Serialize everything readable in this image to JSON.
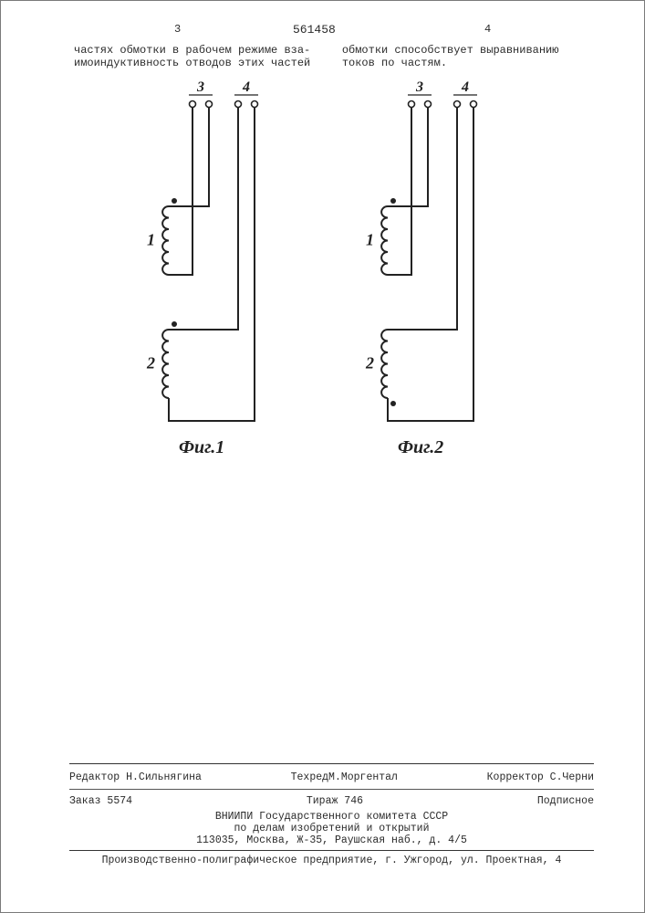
{
  "header": {
    "page_left": "3",
    "patent_number": "561458",
    "page_right": "4",
    "col_left_text": "частях обмотки в рабочем режиме вза­имоиндуктивность отводов этих частей",
    "col_right_text": "обмотки способствует выравниванию токов по частям."
  },
  "figures": {
    "fig1": {
      "caption": "Фиг.1",
      "labels": {
        "left_coil_top": "1",
        "left_coil_bottom": "2",
        "term_left": "3",
        "term_right": "4"
      },
      "stroke": "#222222",
      "stroke_width": 2,
      "coil_turns": 6
    },
    "fig2": {
      "caption": "Фиг.2",
      "labels": {
        "left_coil_top": "1",
        "left_coil_bottom": "2",
        "term_left": "3",
        "term_right": "4"
      },
      "stroke": "#222222",
      "stroke_width": 2,
      "coil_turns": 6
    }
  },
  "footer": {
    "editor_label": "Редактор",
    "editor_name": "Н.Сильнягина",
    "techred_label": "Техред",
    "techred_name": "М.Моргентал",
    "corrector_label": "Корректор",
    "corrector_name": "С.Черни",
    "order_label": "Заказ",
    "order_number": "5574",
    "print_run_label": "Тираж",
    "print_run": "746",
    "subscription": "Подписное",
    "publisher_line1": "ВНИИПИ Государственного комитета СССР",
    "publisher_line2": "по делам изобретений и открытий",
    "publisher_line3": "113035, Москва, Ж-35, Раушская наб., д. 4/5",
    "press_line": "Производственно-полиграфическое предприятие, г. Ужгород, ул. Проектная, 4"
  }
}
